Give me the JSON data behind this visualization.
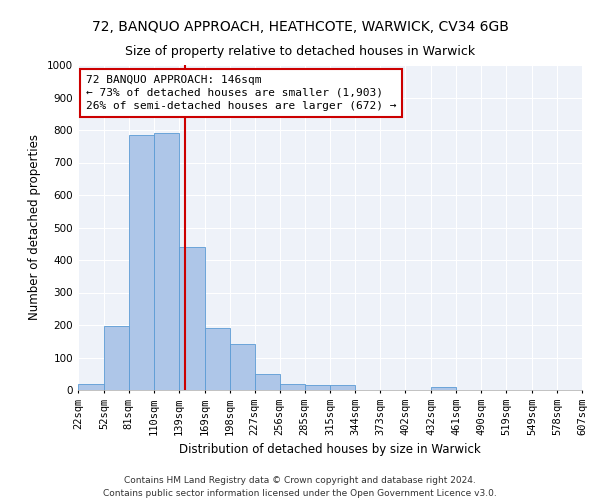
{
  "title": "72, BANQUO APPROACH, HEATHCOTE, WARWICK, CV34 6GB",
  "subtitle": "Size of property relative to detached houses in Warwick",
  "xlabel": "Distribution of detached houses by size in Warwick",
  "ylabel": "Number of detached properties",
  "footer_line1": "Contains HM Land Registry data © Crown copyright and database right 2024.",
  "footer_line2": "Contains public sector information licensed under the Open Government Licence v3.0.",
  "annotation_line1": "72 BANQUO APPROACH: 146sqm",
  "annotation_line2": "← 73% of detached houses are smaller (1,903)",
  "annotation_line3": "26% of semi-detached houses are larger (672) →",
  "bar_edges": [
    22,
    52,
    81,
    110,
    139,
    169,
    198,
    227,
    256,
    285,
    315,
    344,
    373,
    402,
    432,
    461,
    490,
    519,
    549,
    578,
    607
  ],
  "bar_heights": [
    20,
    197,
    785,
    790,
    440,
    192,
    143,
    50,
    17,
    14,
    14,
    0,
    0,
    0,
    10,
    0,
    0,
    0,
    0,
    0
  ],
  "bar_color": "#aec6e8",
  "bar_edge_color": "#5b9bd5",
  "red_line_x": 146,
  "ylim": [
    0,
    1000
  ],
  "yticks": [
    0,
    100,
    200,
    300,
    400,
    500,
    600,
    700,
    800,
    900,
    1000
  ],
  "bg_color": "#eef2f9",
  "grid_color": "#ffffff",
  "annotation_box_color": "#ffffff",
  "annotation_box_edge": "#cc0000",
  "red_line_color": "#cc0000",
  "title_fontsize": 10,
  "subtitle_fontsize": 9,
  "axis_label_fontsize": 8.5,
  "tick_fontsize": 7.5,
  "annotation_fontsize": 8,
  "footer_fontsize": 6.5
}
